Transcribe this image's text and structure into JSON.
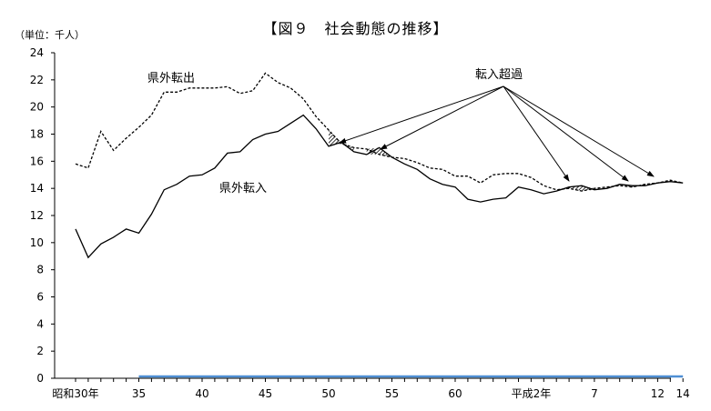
{
  "chart_data": {
    "type": "line",
    "title": "【図９　社会動態の推移】",
    "ylabel": "（単位：千人）",
    "ylim": [
      0,
      24
    ],
    "yticks": [
      0,
      2,
      4,
      6,
      8,
      10,
      12,
      14,
      16,
      18,
      20,
      22,
      24
    ],
    "x": [
      30,
      31,
      32,
      33,
      34,
      35,
      36,
      37,
      38,
      39,
      40,
      41,
      42,
      43,
      44,
      45,
      46,
      47,
      48,
      49,
      50,
      51,
      52,
      53,
      54,
      55,
      56,
      57,
      58,
      59,
      60,
      61,
      62,
      63,
      64,
      "H1",
      "H2",
      "H3",
      "H4",
      "H5",
      "H6",
      "H7",
      "H8",
      "H9",
      "H10",
      "H11",
      "H12",
      "H13",
      "H14"
    ],
    "xticklabels": [
      {
        "at": 30,
        "label": "昭和30年"
      },
      {
        "at": 35,
        "label": "35"
      },
      {
        "at": 40,
        "label": "40"
      },
      {
        "at": 45,
        "label": "45"
      },
      {
        "at": 50,
        "label": "50"
      },
      {
        "at": 55,
        "label": "55"
      },
      {
        "at": 60,
        "label": "60"
      },
      {
        "at": "H2",
        "label": "平成2年"
      },
      {
        "at": "H7",
        "label": "7"
      },
      {
        "at": "H12",
        "label": "12"
      },
      {
        "at": "H14",
        "label": "14"
      }
    ],
    "series": [
      {
        "name": "県外転出",
        "style": "dashed",
        "values": [
          15.8,
          15.5,
          18.2,
          16.8,
          17.7,
          18.5,
          19.4,
          21.1,
          21.1,
          21.4,
          21.4,
          21.4,
          21.5,
          21.0,
          21.2,
          22.5,
          21.8,
          21.4,
          20.6,
          19.3,
          18.3,
          17.3,
          17.0,
          16.9,
          16.5,
          16.3,
          16.2,
          15.9,
          15.5,
          15.4,
          14.9,
          14.9,
          14.4,
          15.0,
          15.1,
          15.1,
          14.8,
          14.2,
          13.9,
          14.0,
          13.8,
          14.0,
          14.1,
          14.2,
          14.1,
          14.3,
          14.4,
          14.6,
          14.4
        ]
      },
      {
        "name": "県外転入",
        "style": "solid",
        "values": [
          11.0,
          8.9,
          9.9,
          10.4,
          11.0,
          10.7,
          12.1,
          13.9,
          14.3,
          14.9,
          15.0,
          15.5,
          16.6,
          16.7,
          17.6,
          18.0,
          18.2,
          18.8,
          19.4,
          18.4,
          17.1,
          17.4,
          16.7,
          16.5,
          17.0,
          16.3,
          15.8,
          15.4,
          14.7,
          14.3,
          14.1,
          13.2,
          13.0,
          13.2,
          13.3,
          14.1,
          13.9,
          13.6,
          13.8,
          14.1,
          14.2,
          13.9,
          14.0,
          14.3,
          14.2,
          14.2,
          14.4,
          14.5,
          14.4
        ]
      }
    ],
    "annotations": [
      {
        "text": "転入超過"
      },
      {
        "text": "県外転出"
      },
      {
        "text": "県外転入"
      }
    ],
    "grid": false,
    "legend": "none"
  }
}
